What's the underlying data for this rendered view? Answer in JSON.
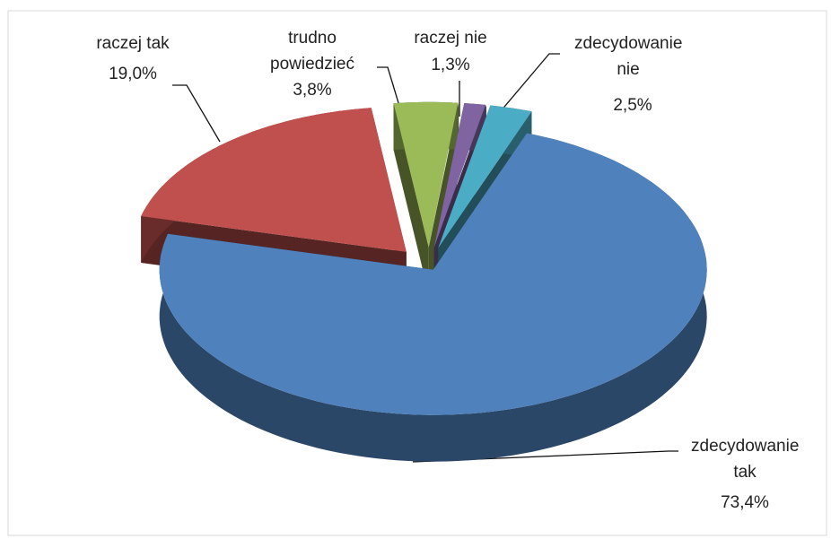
{
  "chart_data": {
    "type": "pie",
    "categories": [
      "zdecydowanie tak",
      "raczej tak",
      "trudno powiedzieć",
      "raczej nie",
      "zdecydowanie nie"
    ],
    "values": [
      73.4,
      19.0,
      3.8,
      1.3,
      2.5
    ],
    "value_labels": [
      "73,4%",
      "19,0%",
      "3,8%",
      "1,3%",
      "2,5%"
    ],
    "colors": [
      "#4f81bd",
      "#c0504d",
      "#9bbb59",
      "#8064a2",
      "#4bacc6"
    ]
  }
}
